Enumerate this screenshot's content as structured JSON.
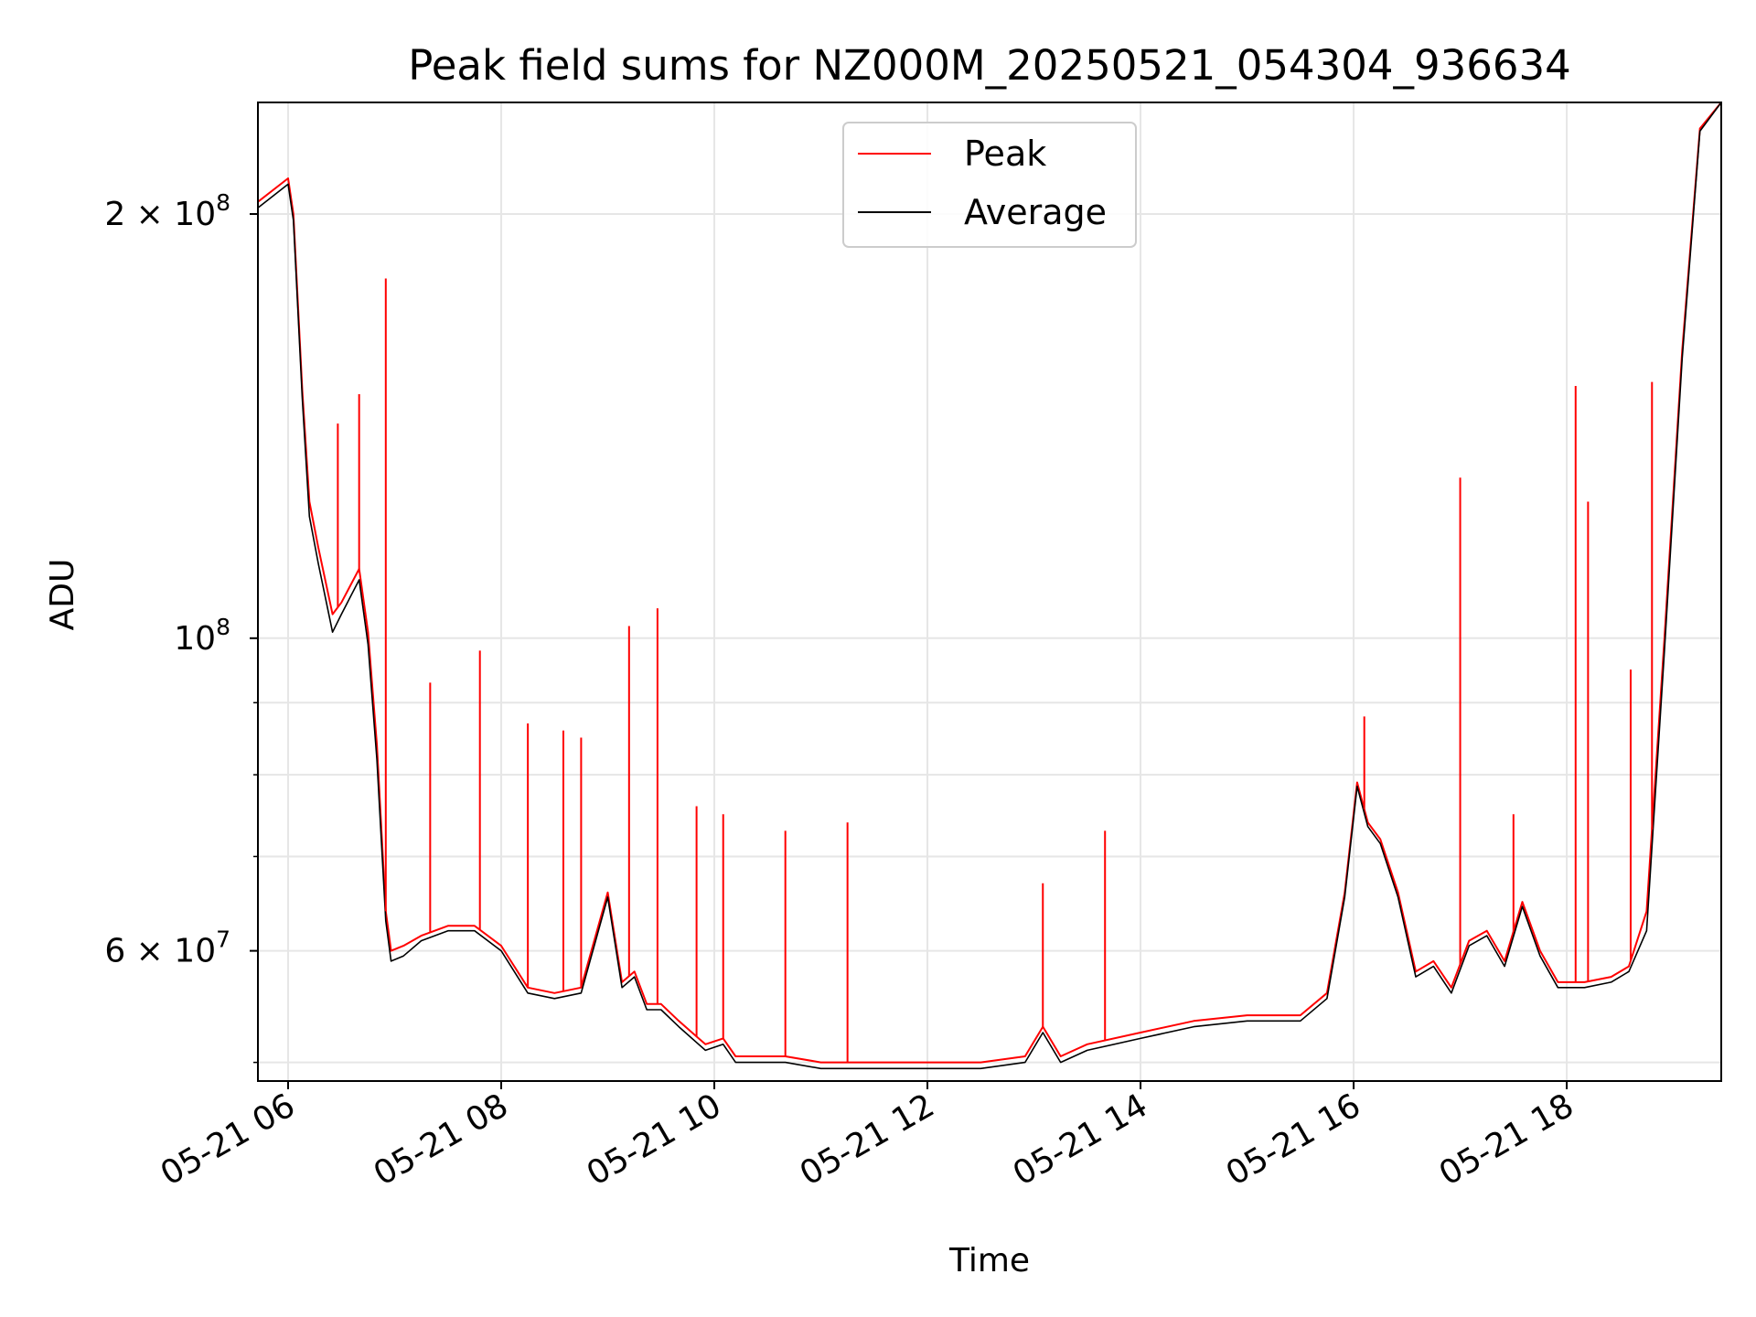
{
  "chart_data": {
    "type": "line",
    "title": "Peak field sums for NZ000M_20250521_054304_936634",
    "xlabel": "Time",
    "ylabel": "ADU",
    "yscale": "log",
    "grid": true,
    "legend": "upper center",
    "xlim": [
      "2025-05-21 05:43",
      "2025-05-21 19:27"
    ],
    "ylim": [
      48500000,
      240000000
    ],
    "x_ticks": [
      {
        "value": "2025-05-21 06:00",
        "label": "05-21 06"
      },
      {
        "value": "2025-05-21 08:00",
        "label": "05-21 08"
      },
      {
        "value": "2025-05-21 10:00",
        "label": "05-21 10"
      },
      {
        "value": "2025-05-21 12:00",
        "label": "05-21 12"
      },
      {
        "value": "2025-05-21 14:00",
        "label": "05-21 14"
      },
      {
        "value": "2025-05-21 16:00",
        "label": "05-21 16"
      },
      {
        "value": "2025-05-21 18:00",
        "label": "05-21 18"
      }
    ],
    "y_ticks": [
      {
        "value": 200000000,
        "label": "2 × 10",
        "sup": "8"
      },
      {
        "value": 100000000,
        "label": "10",
        "sup": "8"
      },
      {
        "value": 60000000,
        "label": "6 × 10",
        "sup": "7"
      }
    ],
    "y_minor_ticks": [
      50000000,
      70000000,
      80000000,
      90000000
    ],
    "series": [
      {
        "name": "Peak",
        "color": "#ff0000",
        "x": [
          "2025-05-21 05:43",
          "2025-05-21 06:00",
          "2025-05-21 06:03",
          "2025-05-21 06:08",
          "2025-05-21 06:12",
          "2025-05-21 06:17",
          "2025-05-21 06:25",
          "2025-05-21 06:30",
          "2025-05-21 06:40",
          "2025-05-21 06:45",
          "2025-05-21 06:50",
          "2025-05-21 06:55",
          "2025-05-21 06:58",
          "2025-05-21 07:05",
          "2025-05-21 07:15",
          "2025-05-21 07:30",
          "2025-05-21 07:45",
          "2025-05-21 08:00",
          "2025-05-21 08:15",
          "2025-05-21 08:30",
          "2025-05-21 08:45",
          "2025-05-21 09:00",
          "2025-05-21 09:08",
          "2025-05-21 09:15",
          "2025-05-21 09:22",
          "2025-05-21 09:30",
          "2025-05-21 09:40",
          "2025-05-21 09:55",
          "2025-05-21 10:05",
          "2025-05-21 10:12",
          "2025-05-21 10:20",
          "2025-05-21 10:40",
          "2025-05-21 11:00",
          "2025-05-21 11:30",
          "2025-05-21 12:00",
          "2025-05-21 12:30",
          "2025-05-21 12:55",
          "2025-05-21 13:05",
          "2025-05-21 13:15",
          "2025-05-21 13:30",
          "2025-05-21 14:00",
          "2025-05-21 14:30",
          "2025-05-21 15:00",
          "2025-05-21 15:30",
          "2025-05-21 15:45",
          "2025-05-21 15:55",
          "2025-05-21 16:02",
          "2025-05-21 16:08",
          "2025-05-21 16:15",
          "2025-05-21 16:25",
          "2025-05-21 16:35",
          "2025-05-21 16:45",
          "2025-05-21 16:55",
          "2025-05-21 17:05",
          "2025-05-21 17:15",
          "2025-05-21 17:25",
          "2025-05-21 17:35",
          "2025-05-21 17:45",
          "2025-05-21 17:55",
          "2025-05-21 18:10",
          "2025-05-21 18:25",
          "2025-05-21 18:35",
          "2025-05-21 18:45",
          "2025-05-21 18:55",
          "2025-05-21 19:05",
          "2025-05-21 19:15",
          "2025-05-21 19:27"
        ],
        "values": [
          204000000,
          212000000,
          200000000,
          150000000,
          125000000,
          116000000,
          104000000,
          106000000,
          112000000,
          101000000,
          84000000,
          64000000,
          60000000,
          60500000,
          61500000,
          62500000,
          62500000,
          60500000,
          56500000,
          56000000,
          56500000,
          66000000,
          57000000,
          58000000,
          55000000,
          55000000,
          53500000,
          51500000,
          52000000,
          50500000,
          50500000,
          50500000,
          50000000,
          50000000,
          50000000,
          50000000,
          50500000,
          53000000,
          50500000,
          51500000,
          52500000,
          53500000,
          54000000,
          54000000,
          56000000,
          66000000,
          79000000,
          74000000,
          72000000,
          66000000,
          58000000,
          59000000,
          56500000,
          61000000,
          62000000,
          59000000,
          65000000,
          60000000,
          57000000,
          57000000,
          57500000,
          58500000,
          64000000,
          100000000,
          160000000,
          230000000,
          240000000
        ]
      },
      {
        "name": "Average",
        "color": "#000000",
        "x": [
          "2025-05-21 05:43",
          "2025-05-21 06:00",
          "2025-05-21 06:03",
          "2025-05-21 06:08",
          "2025-05-21 06:12",
          "2025-05-21 06:17",
          "2025-05-21 06:25",
          "2025-05-21 06:30",
          "2025-05-21 06:40",
          "2025-05-21 06:45",
          "2025-05-21 06:50",
          "2025-05-21 06:55",
          "2025-05-21 06:58",
          "2025-05-21 07:05",
          "2025-05-21 07:15",
          "2025-05-21 07:30",
          "2025-05-21 07:45",
          "2025-05-21 08:00",
          "2025-05-21 08:15",
          "2025-05-21 08:30",
          "2025-05-21 08:45",
          "2025-05-21 09:00",
          "2025-05-21 09:08",
          "2025-05-21 09:15",
          "2025-05-21 09:22",
          "2025-05-21 09:30",
          "2025-05-21 09:40",
          "2025-05-21 09:55",
          "2025-05-21 10:05",
          "2025-05-21 10:12",
          "2025-05-21 10:20",
          "2025-05-21 10:40",
          "2025-05-21 11:00",
          "2025-05-21 11:30",
          "2025-05-21 12:00",
          "2025-05-21 12:30",
          "2025-05-21 12:55",
          "2025-05-21 13:05",
          "2025-05-21 13:15",
          "2025-05-21 13:30",
          "2025-05-21 14:00",
          "2025-05-21 14:30",
          "2025-05-21 15:00",
          "2025-05-21 15:30",
          "2025-05-21 15:45",
          "2025-05-21 15:55",
          "2025-05-21 16:02",
          "2025-05-21 16:08",
          "2025-05-21 16:15",
          "2025-05-21 16:25",
          "2025-05-21 16:35",
          "2025-05-21 16:45",
          "2025-05-21 16:55",
          "2025-05-21 17:05",
          "2025-05-21 17:15",
          "2025-05-21 17:25",
          "2025-05-21 17:35",
          "2025-05-21 17:45",
          "2025-05-21 17:55",
          "2025-05-21 18:10",
          "2025-05-21 18:25",
          "2025-05-21 18:35",
          "2025-05-21 18:45",
          "2025-05-21 18:55",
          "2025-05-21 19:05",
          "2025-05-21 19:15",
          "2025-05-21 19:27"
        ],
        "values": [
          202000000,
          210000000,
          198000000,
          148000000,
          122000000,
          113000000,
          101000000,
          104000000,
          110000000,
          99000000,
          82000000,
          63000000,
          59000000,
          59500000,
          61000000,
          62000000,
          62000000,
          60000000,
          56000000,
          55500000,
          56000000,
          65500000,
          56500000,
          57500000,
          54500000,
          54500000,
          53000000,
          51000000,
          51500000,
          50000000,
          50000000,
          50000000,
          49500000,
          49500000,
          49500000,
          49500000,
          50000000,
          52500000,
          50000000,
          51000000,
          52000000,
          53000000,
          53500000,
          53500000,
          55500000,
          65500000,
          78500000,
          73500000,
          71500000,
          65500000,
          57500000,
          58500000,
          56000000,
          60500000,
          61500000,
          58500000,
          64500000,
          59500000,
          56500000,
          56500000,
          57000000,
          58000000,
          62000000,
          98000000,
          158000000,
          229000000,
          240000000
        ]
      }
    ],
    "spikes": [
      {
        "series": "Peak",
        "x": "2025-05-21 06:55",
        "value": 180000000
      },
      {
        "series": "Peak",
        "x": "2025-05-21 06:40",
        "value": 149000000
      },
      {
        "series": "Peak",
        "x": "2025-05-21 06:28",
        "value": 142000000
      },
      {
        "series": "Peak",
        "x": "2025-05-21 07:20",
        "value": 93000000
      },
      {
        "series": "Peak",
        "x": "2025-05-21 07:48",
        "value": 98000000
      },
      {
        "series": "Peak",
        "x": "2025-05-21 09:12",
        "value": 102000000
      },
      {
        "series": "Peak",
        "x": "2025-05-21 09:28",
        "value": 105000000
      },
      {
        "series": "Peak",
        "x": "2025-05-21 08:15",
        "value": 87000000
      },
      {
        "series": "Peak",
        "x": "2025-05-21 08:35",
        "value": 86000000
      },
      {
        "series": "Peak",
        "x": "2025-05-21 08:45",
        "value": 85000000
      },
      {
        "series": "Peak",
        "x": "2025-05-21 09:50",
        "value": 76000000
      },
      {
        "series": "Peak",
        "x": "2025-05-21 10:05",
        "value": 75000000
      },
      {
        "series": "Peak",
        "x": "2025-05-21 10:40",
        "value": 73000000
      },
      {
        "series": "Peak",
        "x": "2025-05-21 11:15",
        "value": 74000000
      },
      {
        "series": "Peak",
        "x": "2025-05-21 13:05",
        "value": 67000000
      },
      {
        "series": "Peak",
        "x": "2025-05-21 13:40",
        "value": 73000000
      },
      {
        "series": "Peak",
        "x": "2025-05-21 16:06",
        "value": 88000000
      },
      {
        "series": "Peak",
        "x": "2025-05-21 17:00",
        "value": 130000000
      },
      {
        "series": "Peak",
        "x": "2025-05-21 17:30",
        "value": 75000000
      },
      {
        "series": "Peak",
        "x": "2025-05-21 18:05",
        "value": 151000000
      },
      {
        "series": "Peak",
        "x": "2025-05-21 18:12",
        "value": 125000000
      },
      {
        "series": "Peak",
        "x": "2025-05-21 18:48",
        "value": 152000000
      },
      {
        "series": "Peak",
        "x": "2025-05-21 18:36",
        "value": 95000000
      }
    ]
  }
}
